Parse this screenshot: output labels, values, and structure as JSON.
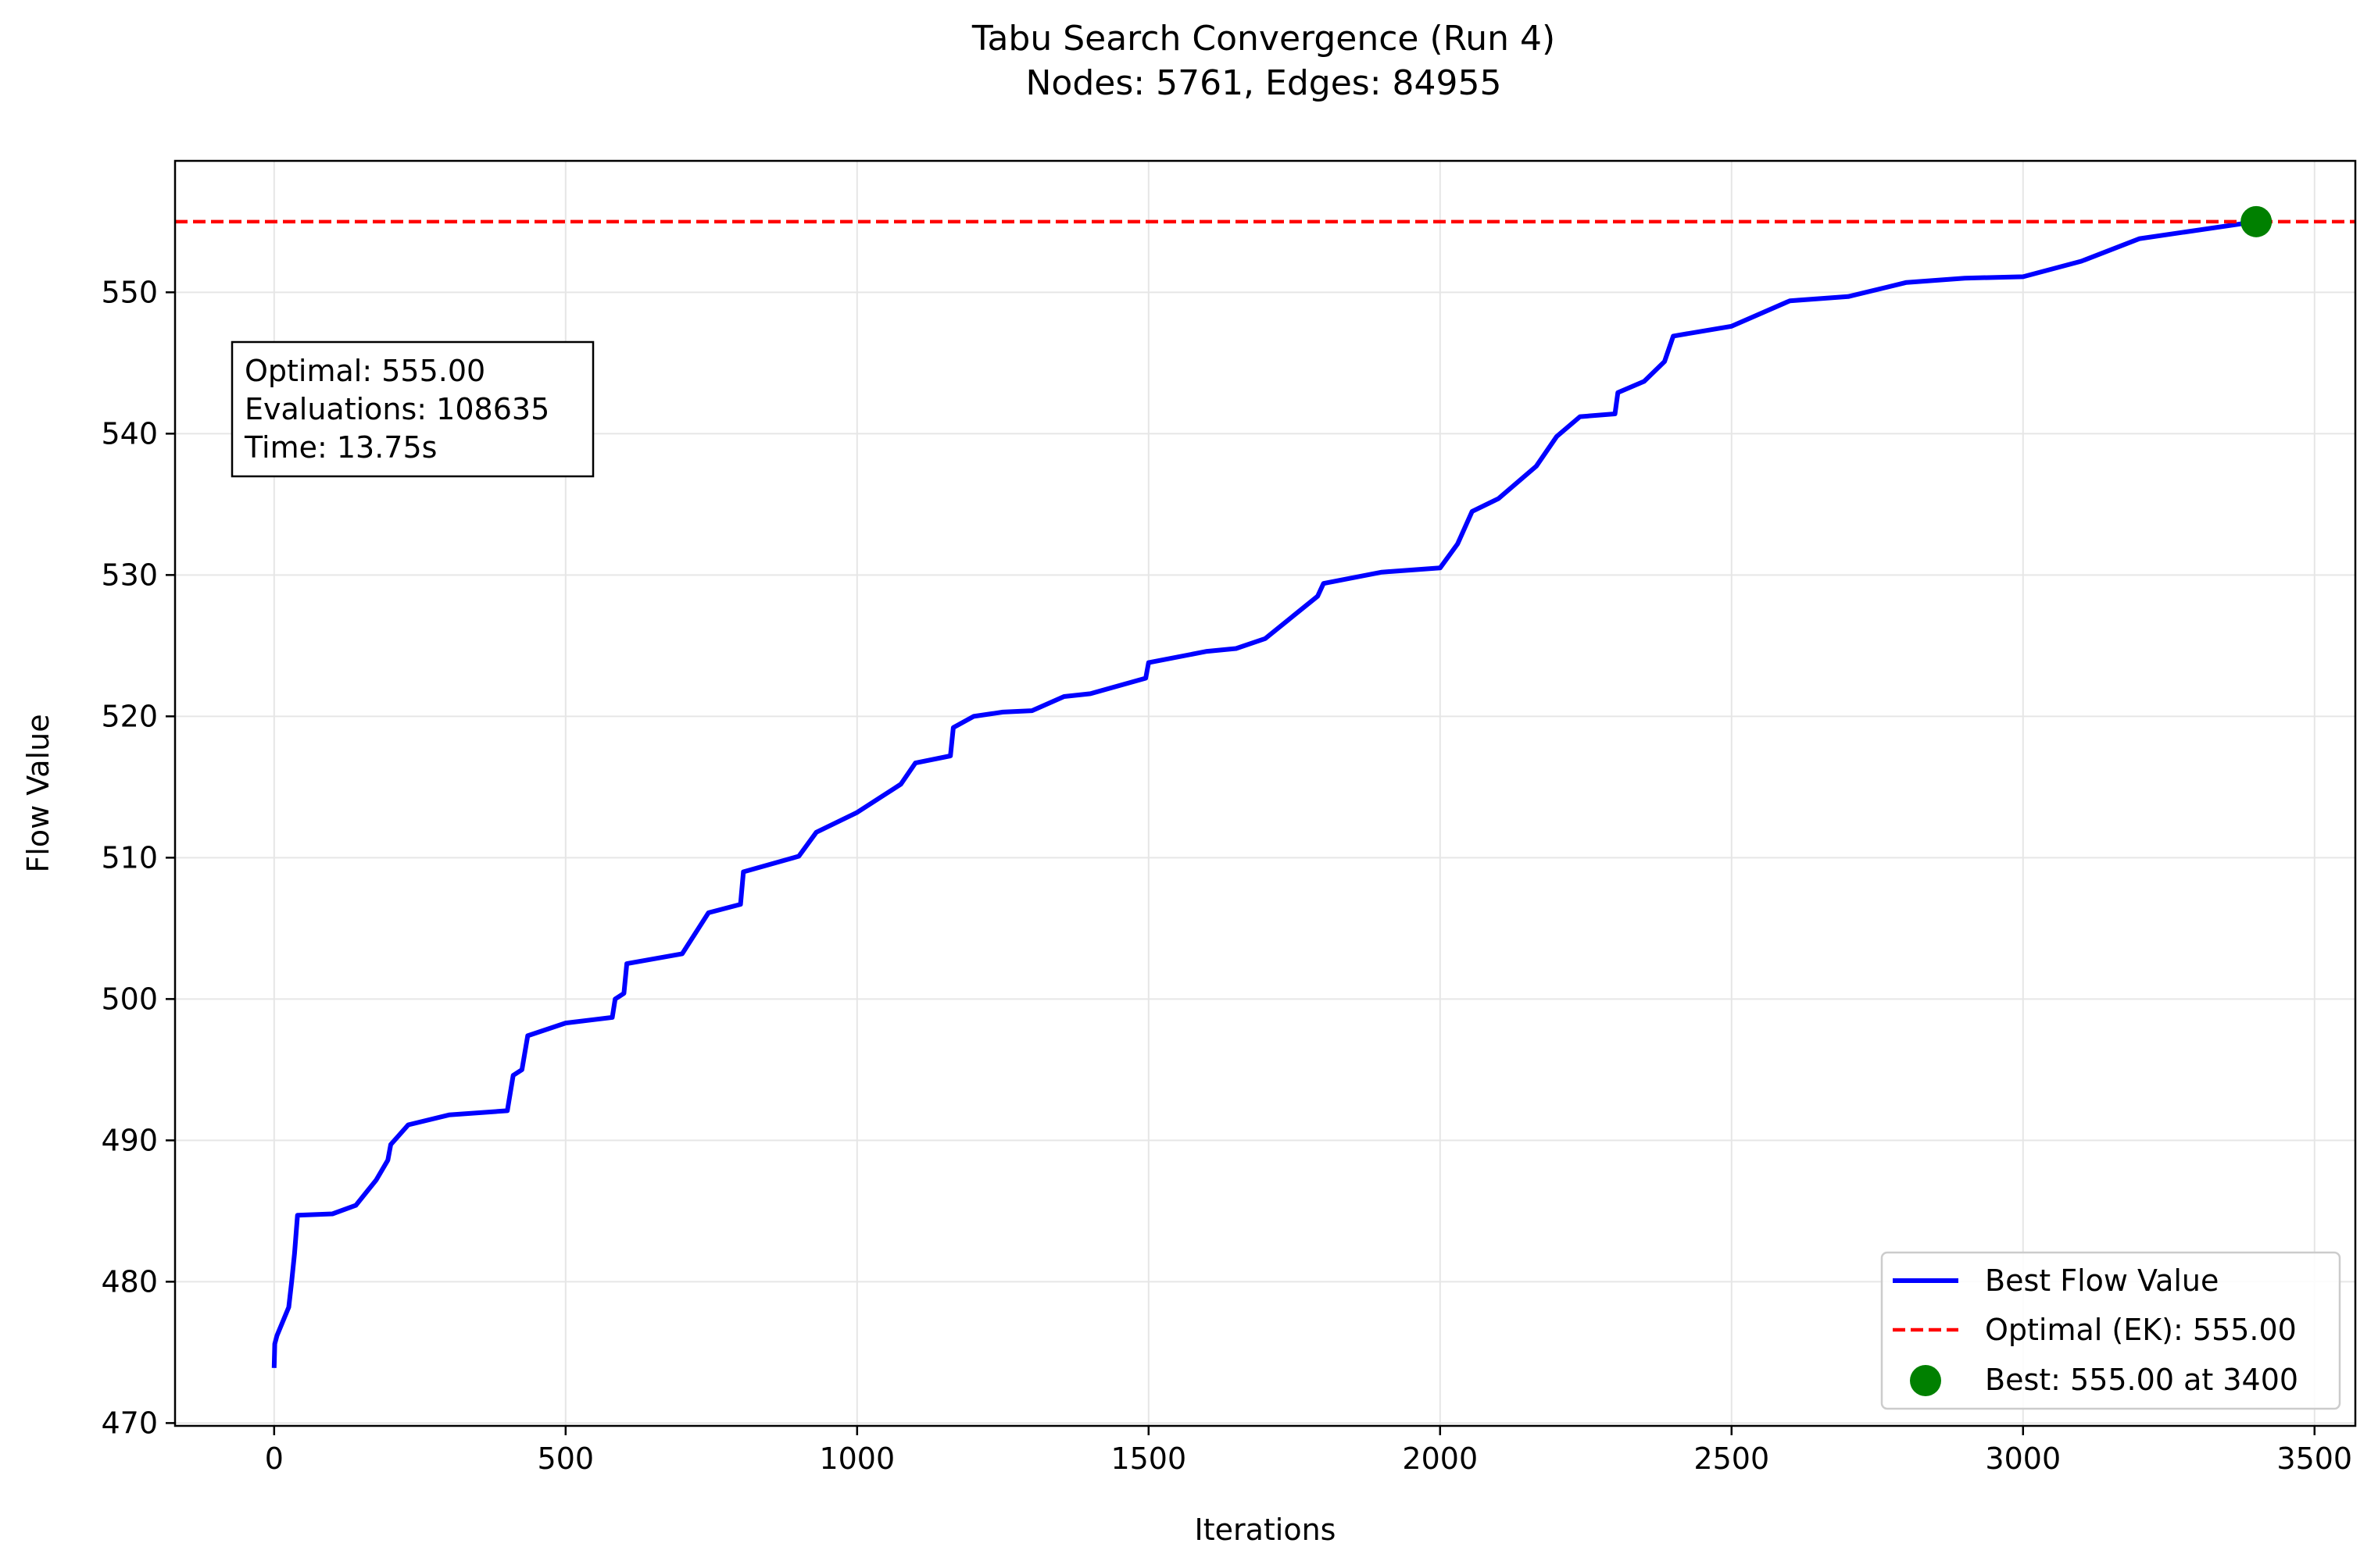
{
  "chart_data": {
    "type": "line",
    "title": "Tabu Search Convergence (Run 4)",
    "subtitle": "Nodes: 5761, Edges: 84955",
    "xlabel": "Iterations",
    "ylabel": "Flow Value",
    "xlim": [
      -170,
      3570
    ],
    "ylim": [
      469.8,
      559.3
    ],
    "xticks": [
      0,
      500,
      1000,
      1500,
      2000,
      2500,
      3000,
      3500
    ],
    "yticks": [
      470,
      480,
      490,
      500,
      510,
      520,
      530,
      540,
      550
    ],
    "grid": true,
    "legend_position": "lower right",
    "info_box": {
      "optimal": "Optimal: 555.00",
      "evaluations": "Evaluations: 108635",
      "time": "Time: 13.75s"
    },
    "series": [
      {
        "name": "Best Flow Value",
        "style": "solid",
        "color": "#0000ff",
        "x": [
          0,
          1,
          5,
          25,
          30,
          35,
          40,
          100,
          140,
          175,
          195,
          200,
          230,
          300,
          400,
          410,
          425,
          435,
          500,
          580,
          585,
          600,
          605,
          700,
          745,
          800,
          805,
          900,
          930,
          1000,
          1075,
          1100,
          1160,
          1165,
          1200,
          1250,
          1300,
          1355,
          1400,
          1495,
          1500,
          1600,
          1650,
          1700,
          1790,
          1800,
          1900,
          2000,
          2030,
          2055,
          2100,
          2165,
          2200,
          2240,
          2300,
          2305,
          2350,
          2385,
          2400,
          2500,
          2600,
          2700,
          2800,
          2900,
          3000,
          3100,
          3200,
          3400
        ],
        "y": [
          473.9,
          475.6,
          476.2,
          478.2,
          480.0,
          482.0,
          484.7,
          484.8,
          485.4,
          487.2,
          488.6,
          489.7,
          491.1,
          491.8,
          492.1,
          494.6,
          495.0,
          497.4,
          498.3,
          498.7,
          500.0,
          500.4,
          502.5,
          503.2,
          506.1,
          506.7,
          509.0,
          510.1,
          511.8,
          513.2,
          515.2,
          516.7,
          517.2,
          519.2,
          520.0,
          520.3,
          520.4,
          521.4,
          521.6,
          522.7,
          523.8,
          524.6,
          524.8,
          525.5,
          528.5,
          529.4,
          530.2,
          530.5,
          532.2,
          534.5,
          535.4,
          537.7,
          539.8,
          541.2,
          541.4,
          542.9,
          543.7,
          545.1,
          546.9,
          547.6,
          549.4,
          549.7,
          550.7,
          551.0,
          551.1,
          552.2,
          553.8,
          555.0
        ]
      },
      {
        "name": "Optimal (EK): 555.00",
        "style": "dashed",
        "color": "#ff0000",
        "y": 555.0
      },
      {
        "name": "Best: 555.00 at 3400",
        "style": "marker",
        "color": "#008000",
        "x": 3400,
        "y": 555.0
      }
    ]
  }
}
